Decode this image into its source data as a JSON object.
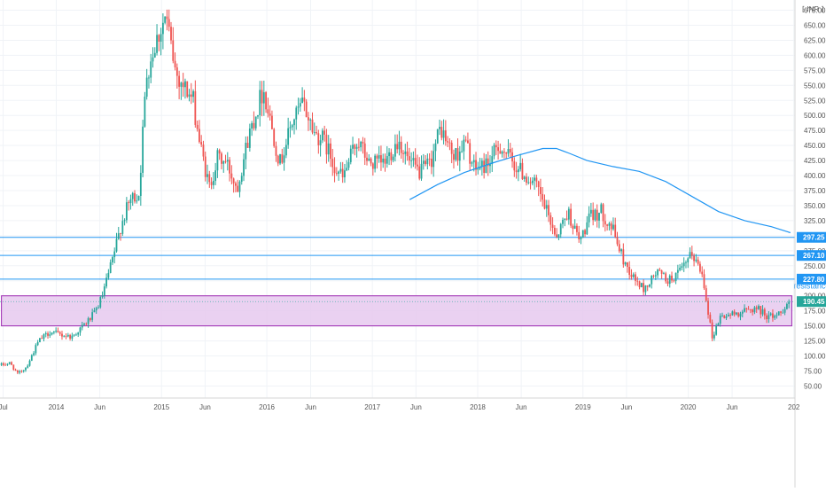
{
  "header": {
    "currency": "INR"
  },
  "chart_data": {
    "type": "candlestick",
    "xlabel": "",
    "ylabel": "",
    "ylim": [
      30,
      692
    ],
    "xlim": [
      "2013-06-20",
      "2021-01-05"
    ],
    "x_ticks": [
      {
        "date": "2013-07-01",
        "label": "Jul"
      },
      {
        "date": "2014-01-01",
        "label": "2014"
      },
      {
        "date": "2014-06-01",
        "label": "Jun"
      },
      {
        "date": "2015-01-01",
        "label": "2015"
      },
      {
        "date": "2015-06-01",
        "label": "Jun"
      },
      {
        "date": "2016-01-01",
        "label": "2016"
      },
      {
        "date": "2016-06-01",
        "label": "Jun"
      },
      {
        "date": "2017-01-01",
        "label": "2017"
      },
      {
        "date": "2017-06-01",
        "label": "Jun"
      },
      {
        "date": "2018-01-01",
        "label": "2018"
      },
      {
        "date": "2018-06-01",
        "label": "Jun"
      },
      {
        "date": "2019-01-01",
        "label": "2019"
      },
      {
        "date": "2019-06-01",
        "label": "Jun"
      },
      {
        "date": "2020-01-01",
        "label": "2020"
      },
      {
        "date": "2020-06-01",
        "label": "Jun"
      },
      {
        "date": "2021-01-01",
        "label": "202"
      }
    ],
    "y_ticks": [
      "675.00",
      "650.00",
      "625.00",
      "600.00",
      "575.00",
      "550.00",
      "525.00",
      "500.00",
      "475.00",
      "450.00",
      "425.00",
      "400.00",
      "375.00",
      "350.00",
      "325.00",
      "300.00",
      "275.00",
      "250.00",
      "225.00",
      "200.00",
      "175.00",
      "150.00",
      "125.00",
      "100.00",
      "75.00",
      "50.00"
    ],
    "up_color": "#26a69a",
    "down_color": "#ef5350",
    "price_path": [
      [
        "2013-06-25",
        85
      ],
      [
        "2013-07-25",
        88
      ],
      [
        "2013-08-20",
        70
      ],
      [
        "2013-09-20",
        82
      ],
      [
        "2013-11-01",
        125
      ],
      [
        "2013-12-10",
        140
      ],
      [
        "2014-01-20",
        135
      ],
      [
        "2014-02-25",
        132
      ],
      [
        "2014-04-15",
        155
      ],
      [
        "2014-05-15",
        172
      ],
      [
        "2014-06-10",
        200
      ],
      [
        "2014-07-15",
        260
      ],
      [
        "2014-08-15",
        320
      ],
      [
        "2014-09-15",
        360
      ],
      [
        "2014-10-15",
        370
      ],
      [
        "2014-11-10",
        570
      ],
      [
        "2014-12-10",
        620
      ],
      [
        "2015-01-15",
        665
      ],
      [
        "2015-02-20",
        570
      ],
      [
        "2015-03-25",
        545
      ],
      [
        "2015-04-20",
        525
      ],
      [
        "2015-05-15",
        450
      ],
      [
        "2015-06-15",
        380
      ],
      [
        "2015-07-15",
        430
      ],
      [
        "2015-08-15",
        420
      ],
      [
        "2015-09-20",
        380
      ],
      [
        "2015-11-01",
        470
      ],
      [
        "2015-12-20",
        545
      ],
      [
        "2016-02-15",
        420
      ],
      [
        "2016-03-30",
        490
      ],
      [
        "2016-05-05",
        520
      ],
      [
        "2016-06-15",
        470
      ],
      [
        "2016-07-15",
        460
      ],
      [
        "2016-08-20",
        420
      ],
      [
        "2016-09-20",
        395
      ],
      [
        "2016-11-10",
        460
      ],
      [
        "2016-12-20",
        420
      ],
      [
        "2017-02-10",
        420
      ],
      [
        "2017-04-01",
        460
      ],
      [
        "2017-05-10",
        420
      ],
      [
        "2017-06-15",
        405
      ],
      [
        "2017-07-20",
        420
      ],
      [
        "2017-08-25",
        480
      ],
      [
        "2017-10-10",
        430
      ],
      [
        "2017-11-20",
        455
      ],
      [
        "2017-12-20",
        410
      ],
      [
        "2018-02-05",
        420
      ],
      [
        "2018-03-20",
        450
      ],
      [
        "2018-05-05",
        420
      ],
      [
        "2018-06-15",
        400
      ],
      [
        "2018-07-25",
        380
      ],
      [
        "2018-09-05",
        330
      ],
      [
        "2018-10-01",
        300
      ],
      [
        "2018-11-10",
        340
      ],
      [
        "2018-12-20",
        290
      ],
      [
        "2019-01-25",
        330
      ],
      [
        "2019-03-05",
        340
      ],
      [
        "2019-04-15",
        310
      ],
      [
        "2019-05-20",
        260
      ],
      [
        "2019-06-25",
        230
      ],
      [
        "2019-08-01",
        210
      ],
      [
        "2019-09-15",
        240
      ],
      [
        "2019-10-25",
        225
      ],
      [
        "2019-12-05",
        240
      ],
      [
        "2020-01-15",
        270
      ],
      [
        "2020-02-20",
        235
      ],
      [
        "2020-03-24",
        130
      ],
      [
        "2020-04-20",
        165
      ],
      [
        "2020-06-10",
        170
      ],
      [
        "2020-07-20",
        175
      ],
      [
        "2020-08-25",
        180
      ],
      [
        "2020-10-05",
        165
      ],
      [
        "2020-11-10",
        170
      ],
      [
        "2020-12-20",
        192
      ]
    ],
    "moving_average": {
      "color": "#2196f3",
      "points": [
        [
          "2017-05-10",
          360
        ],
        [
          "2017-08-15",
          385
        ],
        [
          "2017-11-15",
          405
        ],
        [
          "2018-02-15",
          420
        ],
        [
          "2018-05-15",
          433
        ],
        [
          "2018-08-15",
          445
        ],
        [
          "2018-10-01",
          445
        ],
        [
          "2018-11-15",
          437
        ],
        [
          "2019-01-15",
          425
        ],
        [
          "2019-04-15",
          415
        ],
        [
          "2019-07-15",
          407
        ],
        [
          "2019-10-15",
          390
        ],
        [
          "2020-01-15",
          365
        ],
        [
          "2020-04-15",
          340
        ],
        [
          "2020-07-15",
          325
        ],
        [
          "2020-10-15",
          315
        ],
        [
          "2020-12-20",
          305
        ]
      ]
    },
    "horizontal_levels": [
      {
        "value": 297.25,
        "label": "297.25",
        "color": "#2196f3"
      },
      {
        "value": 267.1,
        "label": "267.10",
        "color": "#2196f3"
      },
      {
        "value": 227.8,
        "label": "227.80",
        "color": "#2196f3"
      }
    ],
    "zone": {
      "top": 200,
      "bottom": 150,
      "x_start": "2013-06-25",
      "x_end": "2020-12-25",
      "label": "resistance zo",
      "fill": "#e6c9ee",
      "stroke": "#9c27b0"
    },
    "last_price": {
      "value": 190.45,
      "label": "190.45",
      "color": "#26a69a"
    }
  }
}
